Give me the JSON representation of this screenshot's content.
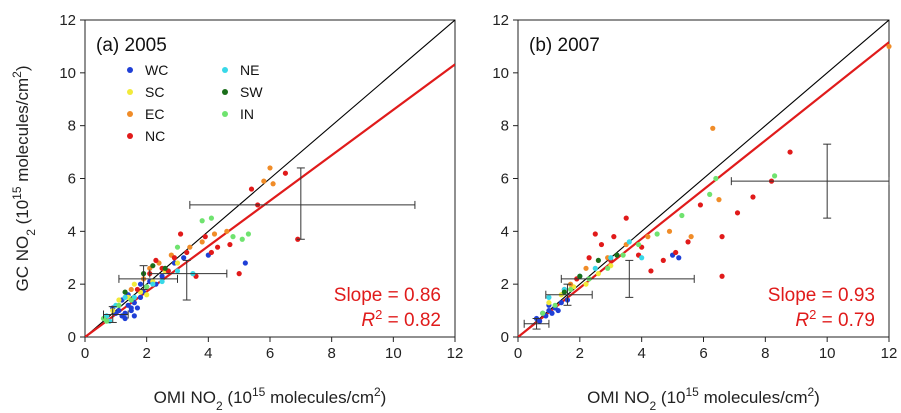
{
  "chart_data": [
    {
      "type": "scatter",
      "title": "(a) 2005",
      "xlabel": {
        "pre": "OMI NO",
        "sub": "2",
        "mid": " (10",
        "sup1": "15",
        "post": " molecules/cm",
        "sup2": "2",
        "end": ")"
      },
      "ylabel": {
        "pre": "GC NO",
        "sub": "2",
        "mid": " (10",
        "sup1": "15",
        "post": " molecules/cm",
        "sup2": "2",
        "end": ")"
      },
      "xlim": [
        0,
        12
      ],
      "ylim": [
        0,
        12
      ],
      "xticks": [
        "0",
        "2",
        "4",
        "6",
        "8",
        "10",
        "12"
      ],
      "yticks": [
        "0",
        "2",
        "4",
        "6",
        "8",
        "10",
        "12"
      ],
      "legend": {
        "position": "top-left",
        "entries": [
          {
            "label": "WC",
            "color": "#1f3fd6"
          },
          {
            "label": "SC",
            "color": "#f2ea3a"
          },
          {
            "label": "EC",
            "color": "#f08c28"
          },
          {
            "label": "NC",
            "color": "#e11a1a"
          },
          {
            "label": "NE",
            "color": "#38d8e8"
          },
          {
            "label": "SW",
            "color": "#1a6e1a"
          },
          {
            "label": "IN",
            "color": "#6fe36f"
          }
        ]
      },
      "one_to_one_line": {
        "x": [
          0,
          12
        ],
        "y": [
          0,
          12
        ],
        "color": "#000000"
      },
      "fit_line": {
        "slope": 0.86,
        "intercept": 0,
        "color": "#e01b1b"
      },
      "stats": {
        "slope_label": "Slope = 0.86",
        "r2_symbol": "R",
        "r2_sup": "2",
        "r2_value": " = 0.82",
        "color": "#e01b1b"
      },
      "error_bars": [
        {
          "x": 0.9,
          "y": 0.85,
          "xerr": [
            0.6,
            1.4
          ],
          "yerr": [
            0.55,
            1.15
          ]
        },
        {
          "x": 1.9,
          "y": 2.2,
          "xerr": [
            1.1,
            3.0
          ],
          "yerr": [
            1.8,
            2.7
          ]
        },
        {
          "x": 3.3,
          "y": 2.4,
          "xerr": [
            2.1,
            4.6
          ],
          "yerr": [
            1.4,
            2.9
          ]
        },
        {
          "x": 7.0,
          "y": 5.0,
          "xerr": [
            3.4,
            10.7
          ],
          "yerr": [
            3.7,
            6.4
          ]
        }
      ],
      "points": [
        {
          "g": "WC",
          "x": [
            1.0,
            1.1,
            1.2,
            1.3,
            1.4,
            1.5,
            1.6,
            1.7,
            1.8,
            1.9,
            2.0,
            2.1,
            2.3,
            2.5,
            2.7,
            2.9,
            1.2,
            1.4,
            1.6,
            1.3,
            3.2,
            4.0,
            5.2,
            0.9,
            1.5,
            1.8
          ],
          "y": [
            0.9,
            1.0,
            0.8,
            0.9,
            1.2,
            1.0,
            1.3,
            1.1,
            1.5,
            1.7,
            1.9,
            2.1,
            2.0,
            2.3,
            2.5,
            2.8,
            1.4,
            1.6,
            0.8,
            0.7,
            3.0,
            3.1,
            2.8,
            1.1,
            1.1,
            2.0
          ]
        },
        {
          "g": "SC",
          "x": [
            1.1,
            1.4,
            1.8,
            2.2,
            2.6,
            3.0,
            1.6,
            2.0,
            0.9
          ],
          "y": [
            1.4,
            1.5,
            1.7,
            2.1,
            2.5,
            2.8,
            2.0,
            1.6,
            1.0
          ]
        },
        {
          "g": "EC",
          "x": [
            1.5,
            1.9,
            2.4,
            2.8,
            3.4,
            3.8,
            4.2,
            4.6,
            5.8,
            6.0,
            6.1,
            2.1
          ],
          "y": [
            1.8,
            2.2,
            2.8,
            3.1,
            3.4,
            3.6,
            3.9,
            4.0,
            5.9,
            6.4,
            5.8,
            2.6
          ]
        },
        {
          "g": "NC",
          "x": [
            1.7,
            2.1,
            2.5,
            2.9,
            3.3,
            3.6,
            3.9,
            4.3,
            4.7,
            5.0,
            5.4,
            5.6,
            6.5,
            6.9,
            3.1,
            2.3,
            2.7,
            4.1
          ],
          "y": [
            1.8,
            2.4,
            2.6,
            3.0,
            3.2,
            2.3,
            3.8,
            3.4,
            3.5,
            2.4,
            5.6,
            5.0,
            6.2,
            3.7,
            3.9,
            2.9,
            2.5,
            3.2
          ]
        },
        {
          "g": "NE",
          "x": [
            0.7,
            1.0,
            1.3,
            1.6,
            2.2,
            2.5,
            3.0,
            3.5,
            0.8
          ],
          "y": [
            0.8,
            1.2,
            1.5,
            1.5,
            2.0,
            2.1,
            2.5,
            2.4,
            0.6
          ]
        },
        {
          "g": "SW",
          "x": [
            1.3,
            1.9,
            2.2,
            2.6
          ],
          "y": [
            1.7,
            2.4,
            2.7,
            2.6
          ]
        },
        {
          "g": "IN",
          "x": [
            0.7,
            1.1,
            1.5,
            2.0,
            3.0,
            4.1,
            4.8,
            5.1,
            5.3,
            3.8,
            0.6
          ],
          "y": [
            0.6,
            1.2,
            1.4,
            1.9,
            3.4,
            4.5,
            3.8,
            3.7,
            3.9,
            4.4,
            0.7
          ]
        }
      ]
    },
    {
      "type": "scatter",
      "title": "(b) 2007",
      "xlabel": {
        "pre": "OMI NO",
        "sub": "2",
        "mid": " (10",
        "sup1": "15",
        "post": " molecules/cm",
        "sup2": "2",
        "end": ")"
      },
      "ylabel": null,
      "xlim": [
        0,
        12
      ],
      "ylim": [
        0,
        12
      ],
      "xticks": [
        "0",
        "2",
        "4",
        "6",
        "8",
        "10",
        "12"
      ],
      "yticks": [
        "0",
        "2",
        "4",
        "6",
        "8",
        "10",
        "12"
      ],
      "legend": null,
      "one_to_one_line": {
        "x": [
          0,
          12
        ],
        "y": [
          0,
          12
        ],
        "color": "#000000"
      },
      "fit_line": {
        "slope": 0.93,
        "intercept": 0,
        "color": "#e01b1b"
      },
      "stats": {
        "slope_label": "Slope = 0.93",
        "r2_symbol": "R",
        "r2_sup": "2",
        "r2_value": " = 0.79",
        "color": "#e01b1b"
      },
      "error_bars": [
        {
          "x": 0.6,
          "y": 0.5,
          "xerr": [
            0.2,
            1.0
          ],
          "yerr": [
            0.3,
            0.7
          ]
        },
        {
          "x": 1.6,
          "y": 1.6,
          "xerr": [
            0.9,
            2.4
          ],
          "yerr": [
            1.2,
            2.0
          ]
        },
        {
          "x": 3.6,
          "y": 2.2,
          "xerr": [
            1.4,
            5.7
          ],
          "yerr": [
            1.5,
            2.9
          ]
        },
        {
          "x": 10.0,
          "y": 5.9,
          "xerr": [
            6.9,
            12.0
          ],
          "yerr": [
            4.5,
            7.3
          ]
        }
      ],
      "points": [
        {
          "g": "WC",
          "x": [
            0.6,
            0.8,
            0.9,
            1.0,
            1.1,
            1.2,
            1.3,
            0.7,
            1.0,
            1.4,
            1.6,
            5.0,
            5.2
          ],
          "y": [
            0.7,
            0.9,
            0.8,
            1.0,
            0.9,
            1.1,
            1.0,
            0.6,
            1.2,
            1.3,
            1.4,
            3.1,
            3.0
          ]
        },
        {
          "g": "SC",
          "x": [
            1.0,
            1.4,
            1.8,
            2.2,
            2.6,
            3.0
          ],
          "y": [
            1.3,
            1.6,
            1.9,
            2.0,
            2.4,
            2.7
          ]
        },
        {
          "g": "EC",
          "x": [
            1.7,
            2.2,
            2.9,
            3.5,
            4.2,
            4.9,
            5.6,
            6.3,
            6.5,
            12.0
          ],
          "y": [
            2.0,
            2.6,
            3.0,
            3.5,
            3.8,
            4.0,
            3.8,
            7.9,
            5.2,
            11.0
          ]
        },
        {
          "g": "NC",
          "x": [
            1.5,
            1.9,
            2.3,
            2.7,
            3.1,
            3.5,
            3.9,
            4.3,
            4.7,
            5.1,
            5.5,
            5.9,
            6.6,
            7.1,
            7.6,
            8.2,
            8.8,
            6.6,
            2.5,
            3.0,
            4.0
          ],
          "y": [
            1.8,
            2.2,
            3.0,
            3.5,
            3.8,
            4.5,
            3.1,
            2.5,
            2.9,
            3.2,
            3.6,
            5.0,
            3.8,
            4.7,
            5.3,
            5.9,
            7.0,
            2.3,
            3.9,
            2.9,
            3.4
          ]
        },
        {
          "g": "NE",
          "x": [
            1.0,
            1.5,
            2.0,
            2.5,
            3.0,
            3.6,
            4.0
          ],
          "y": [
            1.5,
            1.8,
            2.3,
            2.6,
            3.0,
            3.6,
            3.0
          ]
        },
        {
          "g": "SW",
          "x": [
            1.5,
            2.0,
            2.6,
            3.2
          ],
          "y": [
            1.7,
            2.3,
            2.9,
            3.1
          ]
        },
        {
          "g": "IN",
          "x": [
            0.8,
            1.2,
            1.7,
            2.3,
            2.9,
            3.4,
            3.9,
            4.5,
            5.3,
            6.2,
            6.4,
            8.3
          ],
          "y": [
            0.9,
            1.2,
            1.8,
            2.2,
            2.6,
            3.1,
            3.5,
            3.9,
            4.6,
            5.4,
            6.0,
            6.1
          ]
        }
      ]
    }
  ]
}
